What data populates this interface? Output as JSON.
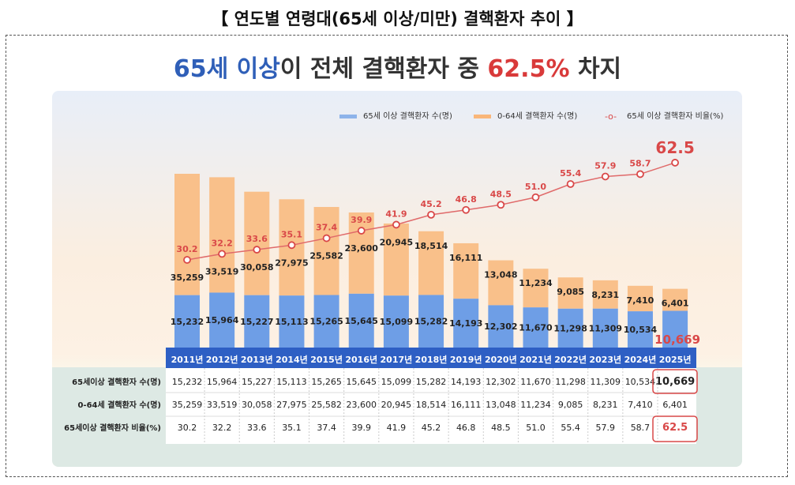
{
  "title": "【 연도별 연령대(65세 이상/미만) 결핵환자 추이 】",
  "headline": {
    "part1": "65세 이상",
    "part2": "이 전체 결핵환자 중 ",
    "part3": "62.5%",
    "part4": " 차지"
  },
  "colors": {
    "senior": "#6e9ee6",
    "young": "#f9b679",
    "ratio": "#d94848",
    "header": "#2e5fc4"
  },
  "chart_data": {
    "type": "bar",
    "stacked": true,
    "categories": [
      "2011년",
      "2012년",
      "2013년",
      "2014년",
      "2015년",
      "2016년",
      "2017년",
      "2018년",
      "2019년",
      "2020년",
      "2021년",
      "2022년",
      "2023년",
      "2024년",
      "2025년"
    ],
    "series": [
      {
        "name": "65세 이상 결핵환자 수(명)",
        "type": "bar",
        "values": [
          15232,
          15964,
          15227,
          15113,
          15265,
          15645,
          15099,
          15282,
          14193,
          12302,
          11670,
          11298,
          11309,
          10534,
          10669
        ]
      },
      {
        "name": "0-64세 결핵환자 수(명)",
        "type": "bar",
        "values": [
          35259,
          33519,
          30058,
          27975,
          25582,
          23600,
          20945,
          18514,
          16111,
          13048,
          11234,
          9085,
          8231,
          7410,
          6401
        ]
      },
      {
        "name": "65세 이상 결핵환자 비율(%)",
        "type": "line",
        "values": [
          30.2,
          32.2,
          33.6,
          35.1,
          37.4,
          39.9,
          41.9,
          45.2,
          46.8,
          48.5,
          51.0,
          55.4,
          57.9,
          58.7,
          62.5
        ]
      }
    ],
    "legend": "top-right",
    "grid": false
  },
  "table": {
    "row_labels": [
      "65세이상 결핵환자 수(명)",
      "0-64세 결핵환자 수(명)",
      "65세이상 결핵환자 비율(%)"
    ],
    "rows": [
      [
        "15,232",
        "15,964",
        "15,227",
        "15,113",
        "15,265",
        "15,645",
        "15,099",
        "15,282",
        "14,193",
        "12,302",
        "11,670",
        "11,298",
        "11,309",
        "10,534",
        "10,669"
      ],
      [
        "35,259",
        "33,519",
        "30,058",
        "27,975",
        "25,582",
        "23,600",
        "20,945",
        "18,514",
        "16,111",
        "13,048",
        "11,234",
        "9,085",
        "8,231",
        "7,410",
        "6,401"
      ],
      [
        "30.2",
        "32.2",
        "33.6",
        "35.1",
        "37.4",
        "39.9",
        "41.9",
        "45.2",
        "46.8",
        "48.5",
        "51.0",
        "55.4",
        "57.9",
        "58.7",
        "62.5"
      ]
    ]
  }
}
